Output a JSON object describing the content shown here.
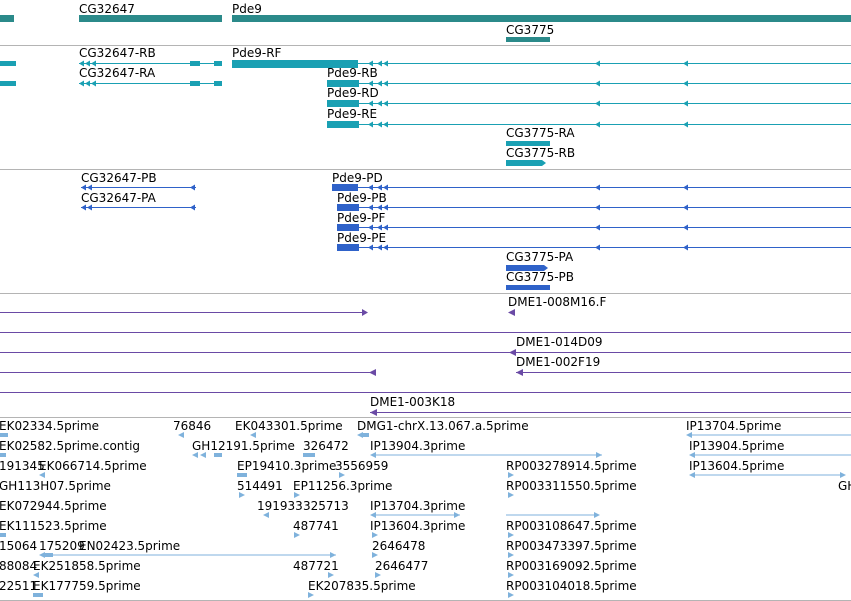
{
  "colors": {
    "gene": "#2b8a8a",
    "mrna": "#1aa0b3",
    "cds": "#2f62c9",
    "clone": "#6a4aa5",
    "est": "#7fb2dc",
    "separator": "#b4b4b4"
  },
  "gene_track": {
    "labels": [
      "CG32647",
      "Pde9",
      "CG3775"
    ]
  },
  "mrna_track": {
    "labels": [
      "CG32647-RB",
      "CG32647-RA",
      "Pde9-RF",
      "Pde9-RB",
      "Pde9-RD",
      "Pde9-RE",
      "CG3775-RA",
      "CG3775-RB"
    ]
  },
  "cds_track": {
    "labels": [
      "CG32647-PB",
      "CG32647-PA",
      "Pde9-PD",
      "Pde9-PB",
      "Pde9-PF",
      "Pde9-PE",
      "CG3775-PA",
      "CG3775-PB"
    ]
  },
  "clone_track": {
    "labels": [
      "DME1-008M16.F",
      "DME1-014D09",
      "DME1-002F19",
      "DME1-003K18"
    ]
  },
  "est_track": {
    "labels": [
      "EK02334.5prime",
      "76846",
      "EK043301.5prime",
      "DMG1-chrX.13.067.a.5prime",
      "IP13704.5prime",
      "EK02582.5prime.contig",
      "GH12191.5prime",
      "326472",
      "IP13904.3prime",
      "IP13904.5prime",
      "191345",
      "EK066714.5prime",
      "EP19410.3prime",
      "3556959",
      "RP003278914.5prime",
      "IP13604.5prime",
      "GH113H07.5prime",
      "514491",
      "EP11256.3prime",
      "RP003311550.5prime",
      "GH",
      "EK072944.5prime",
      "191933",
      "325713",
      "IP13704.3prime",
      "EK111523.5prime",
      "487741",
      "IP13604.3prime",
      "RP003108647.5prime",
      "15064",
      "175209",
      "EN02423.5prime",
      "2646478",
      "RP003473397.5prime",
      "88084",
      "EK251858.5prime",
      "487721",
      "2646477",
      "RP003169092.5prime",
      "22511",
      "EK177759.5prime",
      "EK207835.5prime",
      "RP003104018.5prime"
    ]
  }
}
